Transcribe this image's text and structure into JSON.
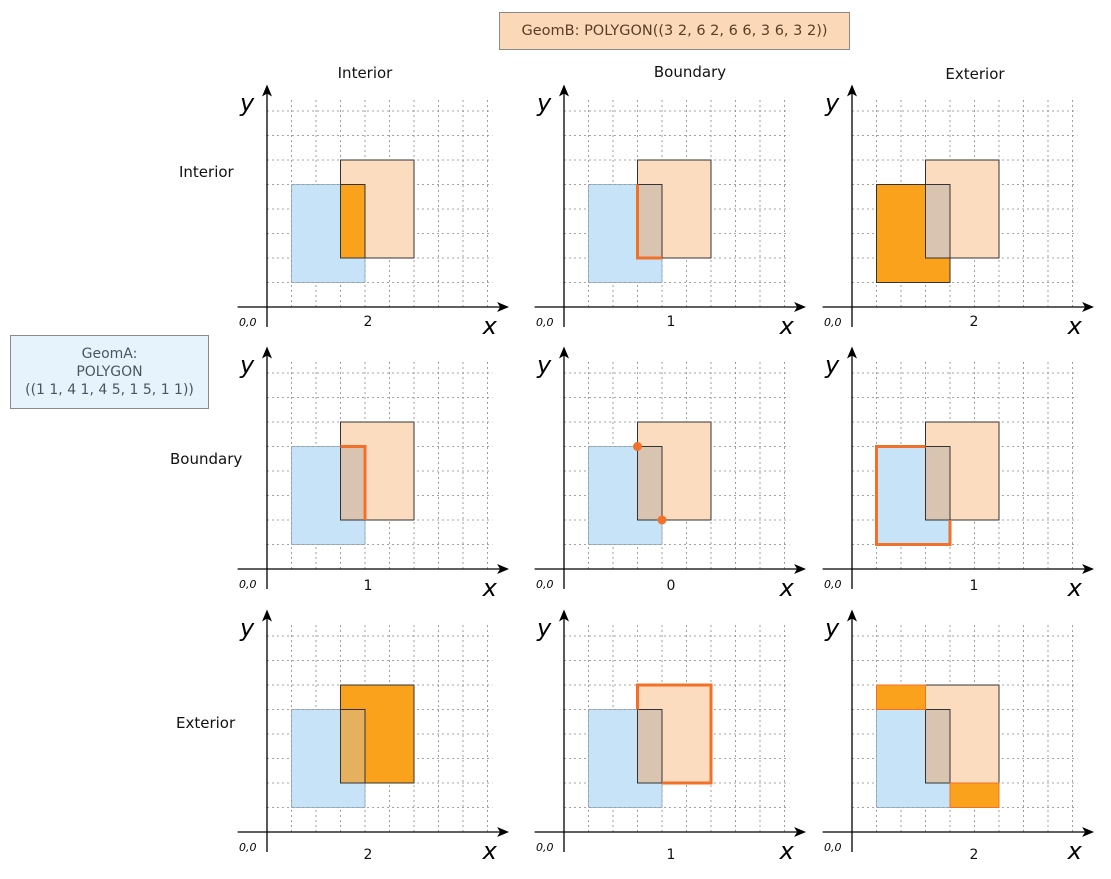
{
  "geomB": {
    "label": "GeomB: POLYGON((3 2, 6 2, 6 6, 3 6, 3 2))"
  },
  "geomA": {
    "line1": "GeomA:",
    "line2": "POLYGON",
    "line3": "((1 1, 4 1, 4 5, 1 5, 1 1))"
  },
  "columns": [
    "Interior",
    "Boundary",
    "Exterior"
  ],
  "rows": [
    "Interior",
    "Boundary",
    "Exterior"
  ],
  "axis": {
    "x": "x",
    "y": "y",
    "origin": "0,0"
  },
  "colors": {
    "geomA_fill": "#c6e3f8",
    "geomB_fill": "#fcdcbf",
    "overlap_fill": "#d9c4b1",
    "highlight": "#fba21d",
    "highlight_line": "#f2712a",
    "axis": "#000000",
    "grid": "#888888"
  },
  "matrix": [
    [
      {
        "value": "2",
        "highlight": "interior-interior"
      },
      {
        "value": "1",
        "highlight": "interior-boundary"
      },
      {
        "value": "2",
        "highlight": "interior-exterior"
      }
    ],
    [
      {
        "value": "1",
        "highlight": "boundary-interior"
      },
      {
        "value": "0",
        "highlight": "boundary-boundary"
      },
      {
        "value": "1",
        "highlight": "boundary-exterior"
      }
    ],
    [
      {
        "value": "2",
        "highlight": "exterior-interior"
      },
      {
        "value": "1",
        "highlight": "exterior-boundary"
      },
      {
        "value": "2",
        "highlight": "exterior-exterior"
      }
    ]
  ]
}
